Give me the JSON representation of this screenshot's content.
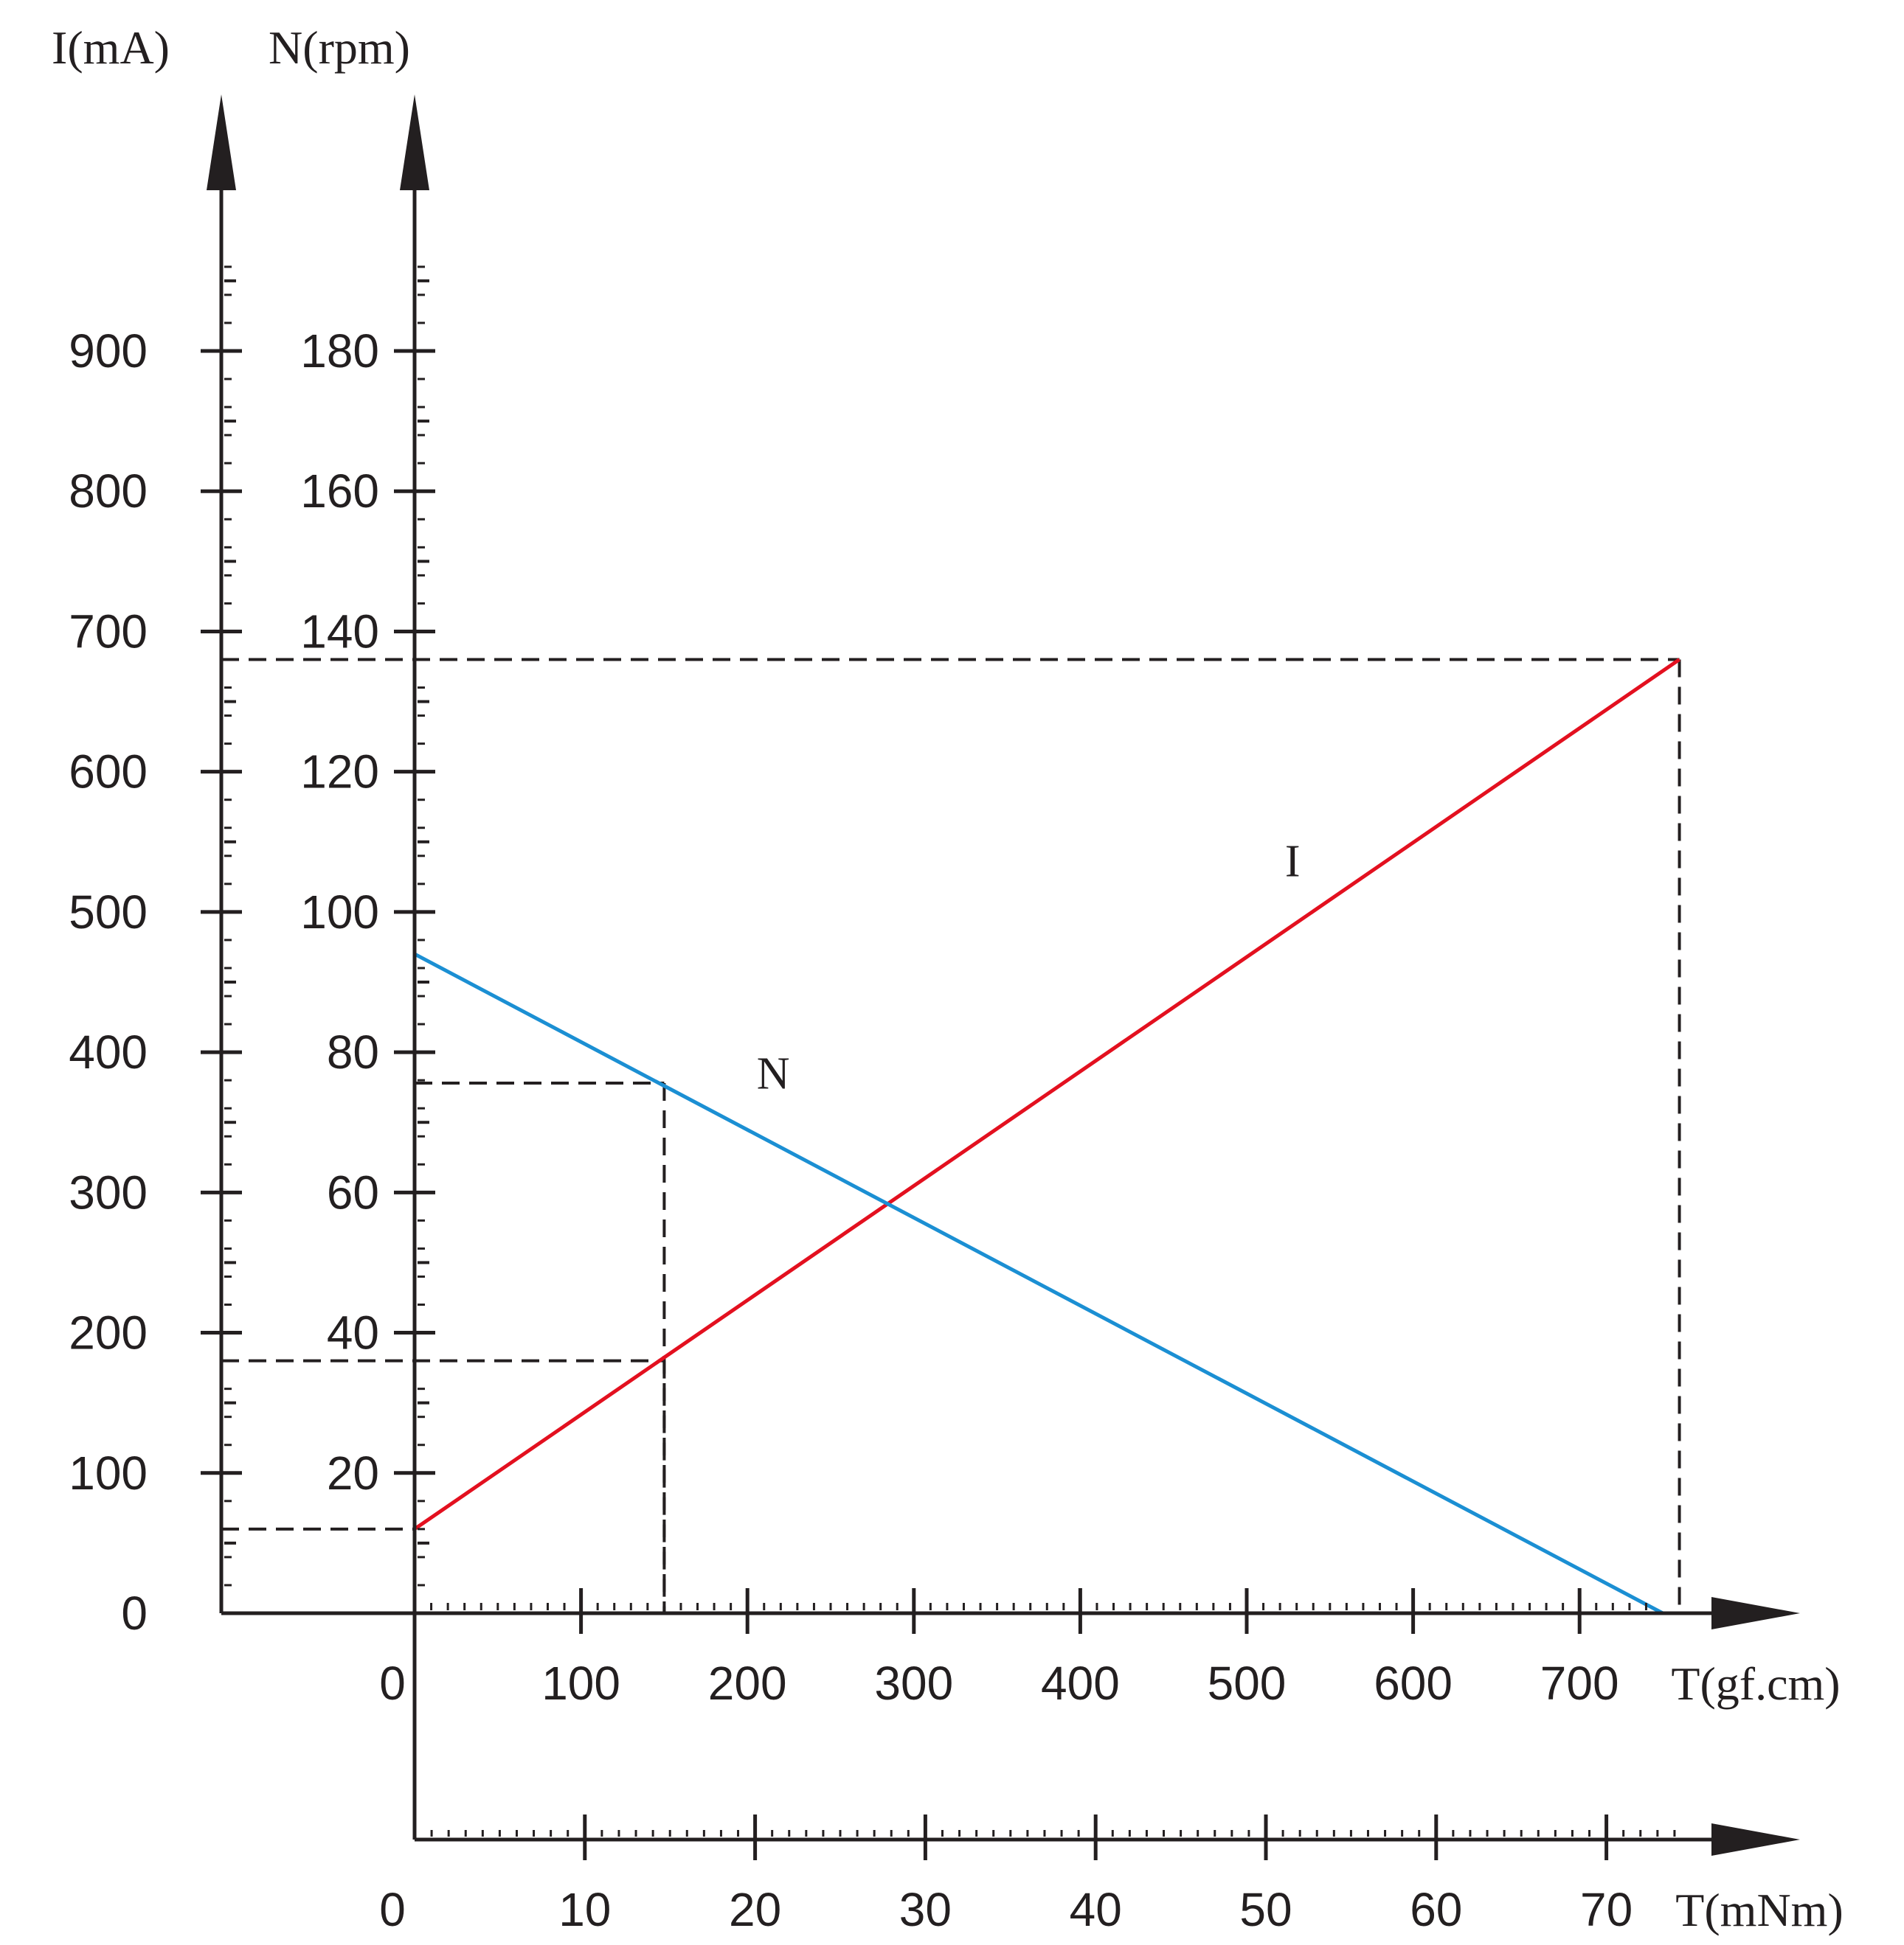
{
  "chart_data": {
    "type": "line",
    "title": "",
    "axes": {
      "current": {
        "label": "I(mA)",
        "ticks": [
          0,
          100,
          200,
          300,
          400,
          500,
          600,
          700,
          800,
          900
        ],
        "range": [
          0,
          1000
        ]
      },
      "speed": {
        "label": "N(rpm)",
        "ticks": [
          20,
          40,
          60,
          80,
          100,
          120,
          140,
          160,
          180
        ],
        "range": [
          0,
          200
        ]
      },
      "torque_gfcm": {
        "label": "T(gf.cm)",
        "ticks": [
          0,
          100,
          200,
          300,
          400,
          500,
          600,
          700
        ],
        "range": [
          0,
          830
        ]
      },
      "torque_mNm": {
        "label": "T(mNm)",
        "ticks": [
          0,
          10,
          20,
          30,
          40,
          50,
          60,
          70
        ],
        "range": [
          0,
          82
        ]
      }
    },
    "series": [
      {
        "name": "I",
        "axis": "current",
        "color": "#e3101f",
        "points": [
          [
            0,
            60
          ],
          [
            760,
            680
          ]
        ]
      },
      {
        "name": "N",
        "axis": "speed",
        "color": "#1b8fd3",
        "points": [
          [
            0,
            94
          ],
          [
            750,
            0
          ]
        ]
      }
    ],
    "guides": [
      {
        "axis": "current",
        "torque": 760,
        "value": 680
      },
      {
        "axis": "current",
        "torque": 150,
        "value": 180
      },
      {
        "axis": "current",
        "torque": 0,
        "value": 60
      },
      {
        "axis": "speed",
        "torque": 150,
        "value": 75.6
      }
    ],
    "grid": false,
    "legend": "none"
  }
}
